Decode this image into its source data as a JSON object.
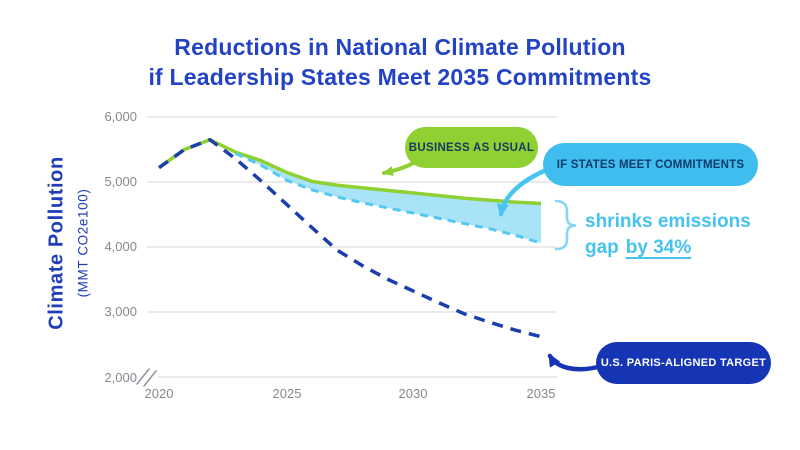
{
  "title": {
    "line1": "Reductions in National Climate Pollution",
    "line2": "if Leadership States Meet 2035 Commitments"
  },
  "y_axis": {
    "label": "Climate Pollution",
    "sublabel": "(MMT CO2e100)",
    "ticks": [
      "6,000",
      "5,000",
      "4,000",
      "3,000",
      "2,000"
    ],
    "axis_break": "double slash break below 2,000"
  },
  "x_axis": {
    "ticks": [
      "2020",
      "2025",
      "2030",
      "2035"
    ]
  },
  "series_labels": {
    "bau": "BUSINESS AS USUAL",
    "commitments": "IF STATES MEET COMMITMENTS",
    "paris": "U.S. PARIS-ALIGNED TARGET"
  },
  "annotation": {
    "line1": "shrinks emissions",
    "line2_prefix": "gap",
    "line2_underlined": "by 34%"
  },
  "colors": {
    "title_blue": "#2343C5",
    "axis_label_blue": "#1E3EB8",
    "tick_gray": "#85898F",
    "gridline_gray": "#DEDEDE",
    "bau_green": "#8FD032",
    "bau_pill_text": "#16395F",
    "commit_cyan_line": "#54C8F1",
    "commit_cyan_fill": "#A9E3F8",
    "commit_pill_bg": "#3FBDEE",
    "commit_pill_text": "#0D3C6E",
    "paris_blue_line": "#1B3EAD",
    "paris_pill_bg": "#1535B5",
    "paris_pill_text": "#FFFFFF",
    "annotation_cyan": "#45C3F0",
    "brace_cyan": "#83D6F6"
  },
  "chart_data": {
    "type": "line",
    "title": "Reductions in National Climate Pollution if Leadership States Meet 2035 Commitments",
    "xlabel": "",
    "ylabel": "Climate Pollution (MMT CO2e100)",
    "xlim": [
      2020,
      2035
    ],
    "ylim": [
      2000,
      6000
    ],
    "xticks": [
      2020,
      2025,
      2030,
      2035
    ],
    "yticks": [
      6000,
      5000,
      4000,
      3000,
      2000
    ],
    "grid": "horizontal",
    "legend_position": "pill callouts with arrows on plot",
    "x": [
      2020,
      2021,
      2022,
      2023,
      2024,
      2025,
      2026,
      2027,
      2028,
      2029,
      2030,
      2031,
      2032,
      2033,
      2034,
      2035
    ],
    "series": [
      {
        "name": "Business as usual",
        "style": "solid",
        "color": "#8FD032",
        "values": [
          5220,
          5500,
          5650,
          5460,
          5330,
          5150,
          5010,
          4950,
          4910,
          4870,
          4830,
          4790,
          4750,
          4720,
          4690,
          4670
        ]
      },
      {
        "name": "If states meet commitments",
        "style": "dashed",
        "color": "#54C8F1",
        "fill_between_with": "Business as usual",
        "fill_color": "#A9E3F8",
        "values": [
          null,
          null,
          null,
          5440,
          5260,
          5030,
          4880,
          4770,
          4680,
          4600,
          4520,
          4440,
          4360,
          4280,
          4180,
          4060
        ]
      },
      {
        "name": "U.S. Paris-aligned target",
        "style": "dashed",
        "color": "#1B3EAD",
        "values": [
          5220,
          5500,
          5650,
          5360,
          5020,
          4660,
          4300,
          3950,
          3710,
          3500,
          3320,
          3140,
          2970,
          2840,
          2720,
          2620
        ]
      }
    ],
    "annotations": [
      {
        "text": "shrinks emissions gap by 34%",
        "refers_to": "gap between business-as-usual and commitments lines at 2035, marked with curly brace"
      }
    ],
    "notes": "2020-2022 is shared historical data (green solid overlaid by navy dashes); y-axis has a break below 2,000"
  }
}
